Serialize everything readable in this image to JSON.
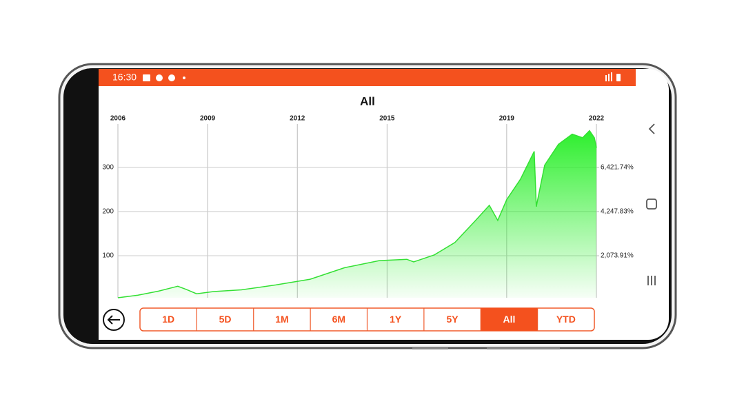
{
  "status_bar": {
    "time": "16:30"
  },
  "chart_data": {
    "type": "area",
    "title": "All",
    "x": [
      2006.0,
      2006.67,
      2007.36,
      2008.0,
      2008.28,
      2008.63,
      2009.2,
      2010.13,
      2011.28,
      2012.43,
      2013.58,
      2014.74,
      2015.66,
      2015.89,
      2016.58,
      2017.27,
      2017.96,
      2018.42,
      2018.7,
      2019.0,
      2019.46,
      2019.92,
      2019.99,
      2020.27,
      2020.73,
      2021.19,
      2021.54,
      2021.77,
      2021.93,
      2022.0
    ],
    "values": [
      5,
      11,
      20,
      31,
      24,
      14,
      19,
      23,
      34,
      47,
      73,
      89,
      92,
      86,
      102,
      130,
      180,
      214,
      180,
      227,
      273,
      336,
      211,
      305,
      352,
      375,
      367,
      383,
      367,
      344
    ],
    "color": "#33e033",
    "xlim": [
      2006,
      2022
    ],
    "xticks": [
      2006,
      2009,
      2012,
      2015,
      2019,
      2022
    ],
    "ylim": [
      5,
      390
    ],
    "yticks": [
      100,
      200,
      300
    ],
    "y2lim": [
      8.696,
      8378.26
    ],
    "y2ticks": [
      {
        "value": 2073.91,
        "label": "2,073.91%"
      },
      {
        "value": 4247.83,
        "label": "4,247.83%"
      },
      {
        "value": 6421.74,
        "label": "6,421.74%"
      }
    ],
    "grid": true
  },
  "range_buttons": [
    "1D",
    "5D",
    "1M",
    "6M",
    "1Y",
    "5Y",
    "All",
    "YTD"
  ],
  "selected": "All"
}
